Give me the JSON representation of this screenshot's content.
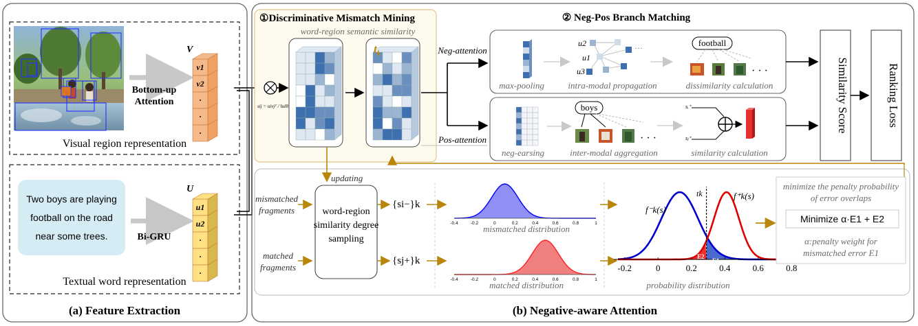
{
  "panels": {
    "feature_extraction": {
      "title": "(a) Feature Extraction",
      "visual_caption": "Visual region representation",
      "textual_caption": "Textual word representation",
      "bottom_up_line1": "Bottom-up",
      "bottom_up_line2": "Attention",
      "bigru": "Bi-GRU",
      "V": "V",
      "U": "U",
      "v_labels": [
        "v1",
        "v2",
        "·",
        "·",
        "·"
      ],
      "u_labels": [
        "u1",
        "u2",
        "·",
        "·",
        "·"
      ],
      "sentence": [
        "Two boys are playing",
        "football on the road",
        "near some trees."
      ]
    },
    "negative_aware": {
      "title": "(b) Negative-aware Attention",
      "dmm_title": "①Discriminative Mismatch Mining",
      "dmm_subtitle": "word-region semantic similarity",
      "tk": "t",
      "tk_sub": "k",
      "npbm_title": "② Neg-Pos Branch Matching",
      "neg_attention": "Neg-attention",
      "pos_attention": "Pos-attention",
      "neg_steps": [
        "max-pooling",
        "intra-modal propagation",
        "dissimilarity calculation"
      ],
      "pos_steps": [
        "neg-earsing",
        "inter-modal aggregation",
        "similarity calculation"
      ],
      "football": "football",
      "boys": "boys",
      "u_nodes": [
        "u2",
        "u1",
        "u3"
      ],
      "similarity_score": "Similarity  Score",
      "ranking_loss": "Ranking  Loss",
      "updating": "updating",
      "mismatched_fragments": [
        "mismatched",
        "fragments"
      ],
      "matched_fragments": [
        "matched",
        "fragments"
      ],
      "sampling_box": [
        "word-region",
        "similarity degree",
        "sampling"
      ],
      "set_neg": "{si−}k",
      "set_pos": "{sj+}k",
      "mismatched_distribution": "mismatched distribution",
      "matched_distribution": "matched distribution",
      "probability_distribution": "probability distribution",
      "small_axis_ticks": [
        "-0.4",
        "-0.2",
        "0",
        "0.2",
        "0.4",
        "0.6",
        "0.8",
        "1"
      ],
      "big_axis_ticks": [
        "-0.2",
        "0",
        "0.2",
        "0.4",
        "0.6",
        "0.8"
      ],
      "f_neg": "f⁻k(s)",
      "f_pos": "f⁺k(s)",
      "tk_line": "tk",
      "E2": "E2",
      "aE1": "αE1",
      "minimize_note": [
        "minimize the penalty probability",
        "of error overlaps"
      ],
      "minimize_eq": "Minimize  α·E1 + E2",
      "alpha_note": [
        "α:penalty weight for",
        "mismatched error E1"
      ],
      "formula": "sij = uivjᵀ / ‖ui‖‖vj‖"
    }
  },
  "colors": {
    "gold": "#b8860b",
    "neg_curve": "#0000cc",
    "pos_curve": "#e00000",
    "orange_block": "#f5b98a",
    "yellow_block": "#ffe082",
    "blue_cell": "#3e6fae",
    "sentence_bg": "#d6ecf5"
  }
}
